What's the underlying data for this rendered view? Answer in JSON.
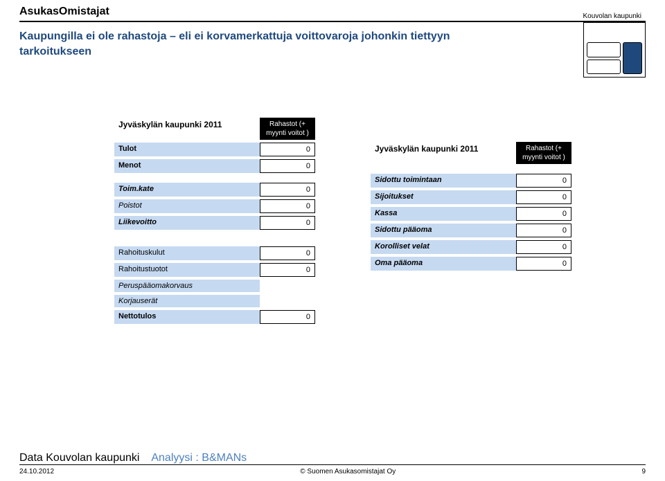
{
  "header": {
    "title_prefix": "Asukas",
    "title_suffix": "Omistajat"
  },
  "rightBox": {
    "label": "Kouvolan kaupunki"
  },
  "subtitle": "Kaupungilla ei ole rahastoja – eli ei korvamerkattuja voittovaroja johonkin tiettyyn tarkoitukseen",
  "leftTable": {
    "headerLabel": "Jyväskylän kaupunki 2011",
    "headerValue": "Rahastot (+ myynti voitot )",
    "rows": [
      {
        "label": "Tulot",
        "value": "0",
        "style": "bold"
      },
      {
        "label": "Menot",
        "value": "0",
        "style": "bold"
      }
    ],
    "rows2": [
      {
        "label": "Toim.kate",
        "value": "0",
        "style": "bold italic"
      },
      {
        "label": "Poistot",
        "value": "0",
        "style": "italic"
      },
      {
        "label": "Liikevoitto",
        "value": "0",
        "style": "bold italic"
      }
    ],
    "rows3": [
      {
        "label": "Rahoituskulut",
        "value": "0",
        "style": ""
      },
      {
        "label": "Rahoitustuotot",
        "value": "0",
        "style": ""
      },
      {
        "label": "Peruspääomakorvaus",
        "value": "",
        "style": "italic"
      },
      {
        "label": "Korjauserät",
        "value": "",
        "style": "italic"
      },
      {
        "label": "Nettotulos",
        "value": "0",
        "style": "bold"
      }
    ]
  },
  "rightTable": {
    "headerLabel": "Jyväskylän kaupunki 2011",
    "headerValue": "Rahastot (+ myynti voitot )",
    "rows": [
      {
        "label": "Sidottu toimintaan",
        "value": "0",
        "style": "bold italic"
      },
      {
        "label": "Sijoitukset",
        "value": "0",
        "style": "bold italic"
      },
      {
        "label": "Kassa",
        "value": "0",
        "style": "bold italic"
      },
      {
        "label": "Sidottu pääoma",
        "value": "0",
        "style": "bold italic"
      },
      {
        "label": "Korolliset velat",
        "value": "0",
        "style": "bold italic"
      },
      {
        "label": "Oma pääoma",
        "value": "0",
        "style": "bold italic"
      }
    ]
  },
  "footer": {
    "source1": "Data Kouvolan kaupunki",
    "source2": "Analyysi : B&MANs",
    "date": "24.10.2012",
    "center": "© Suomen Asukasomistajat Oy",
    "pageNum": "9"
  },
  "colors": {
    "primary_blue": "#1f497d",
    "light_blue": "#c5d9f1",
    "black": "#000000",
    "white": "#ffffff",
    "link_blue": "#4f81bd"
  }
}
